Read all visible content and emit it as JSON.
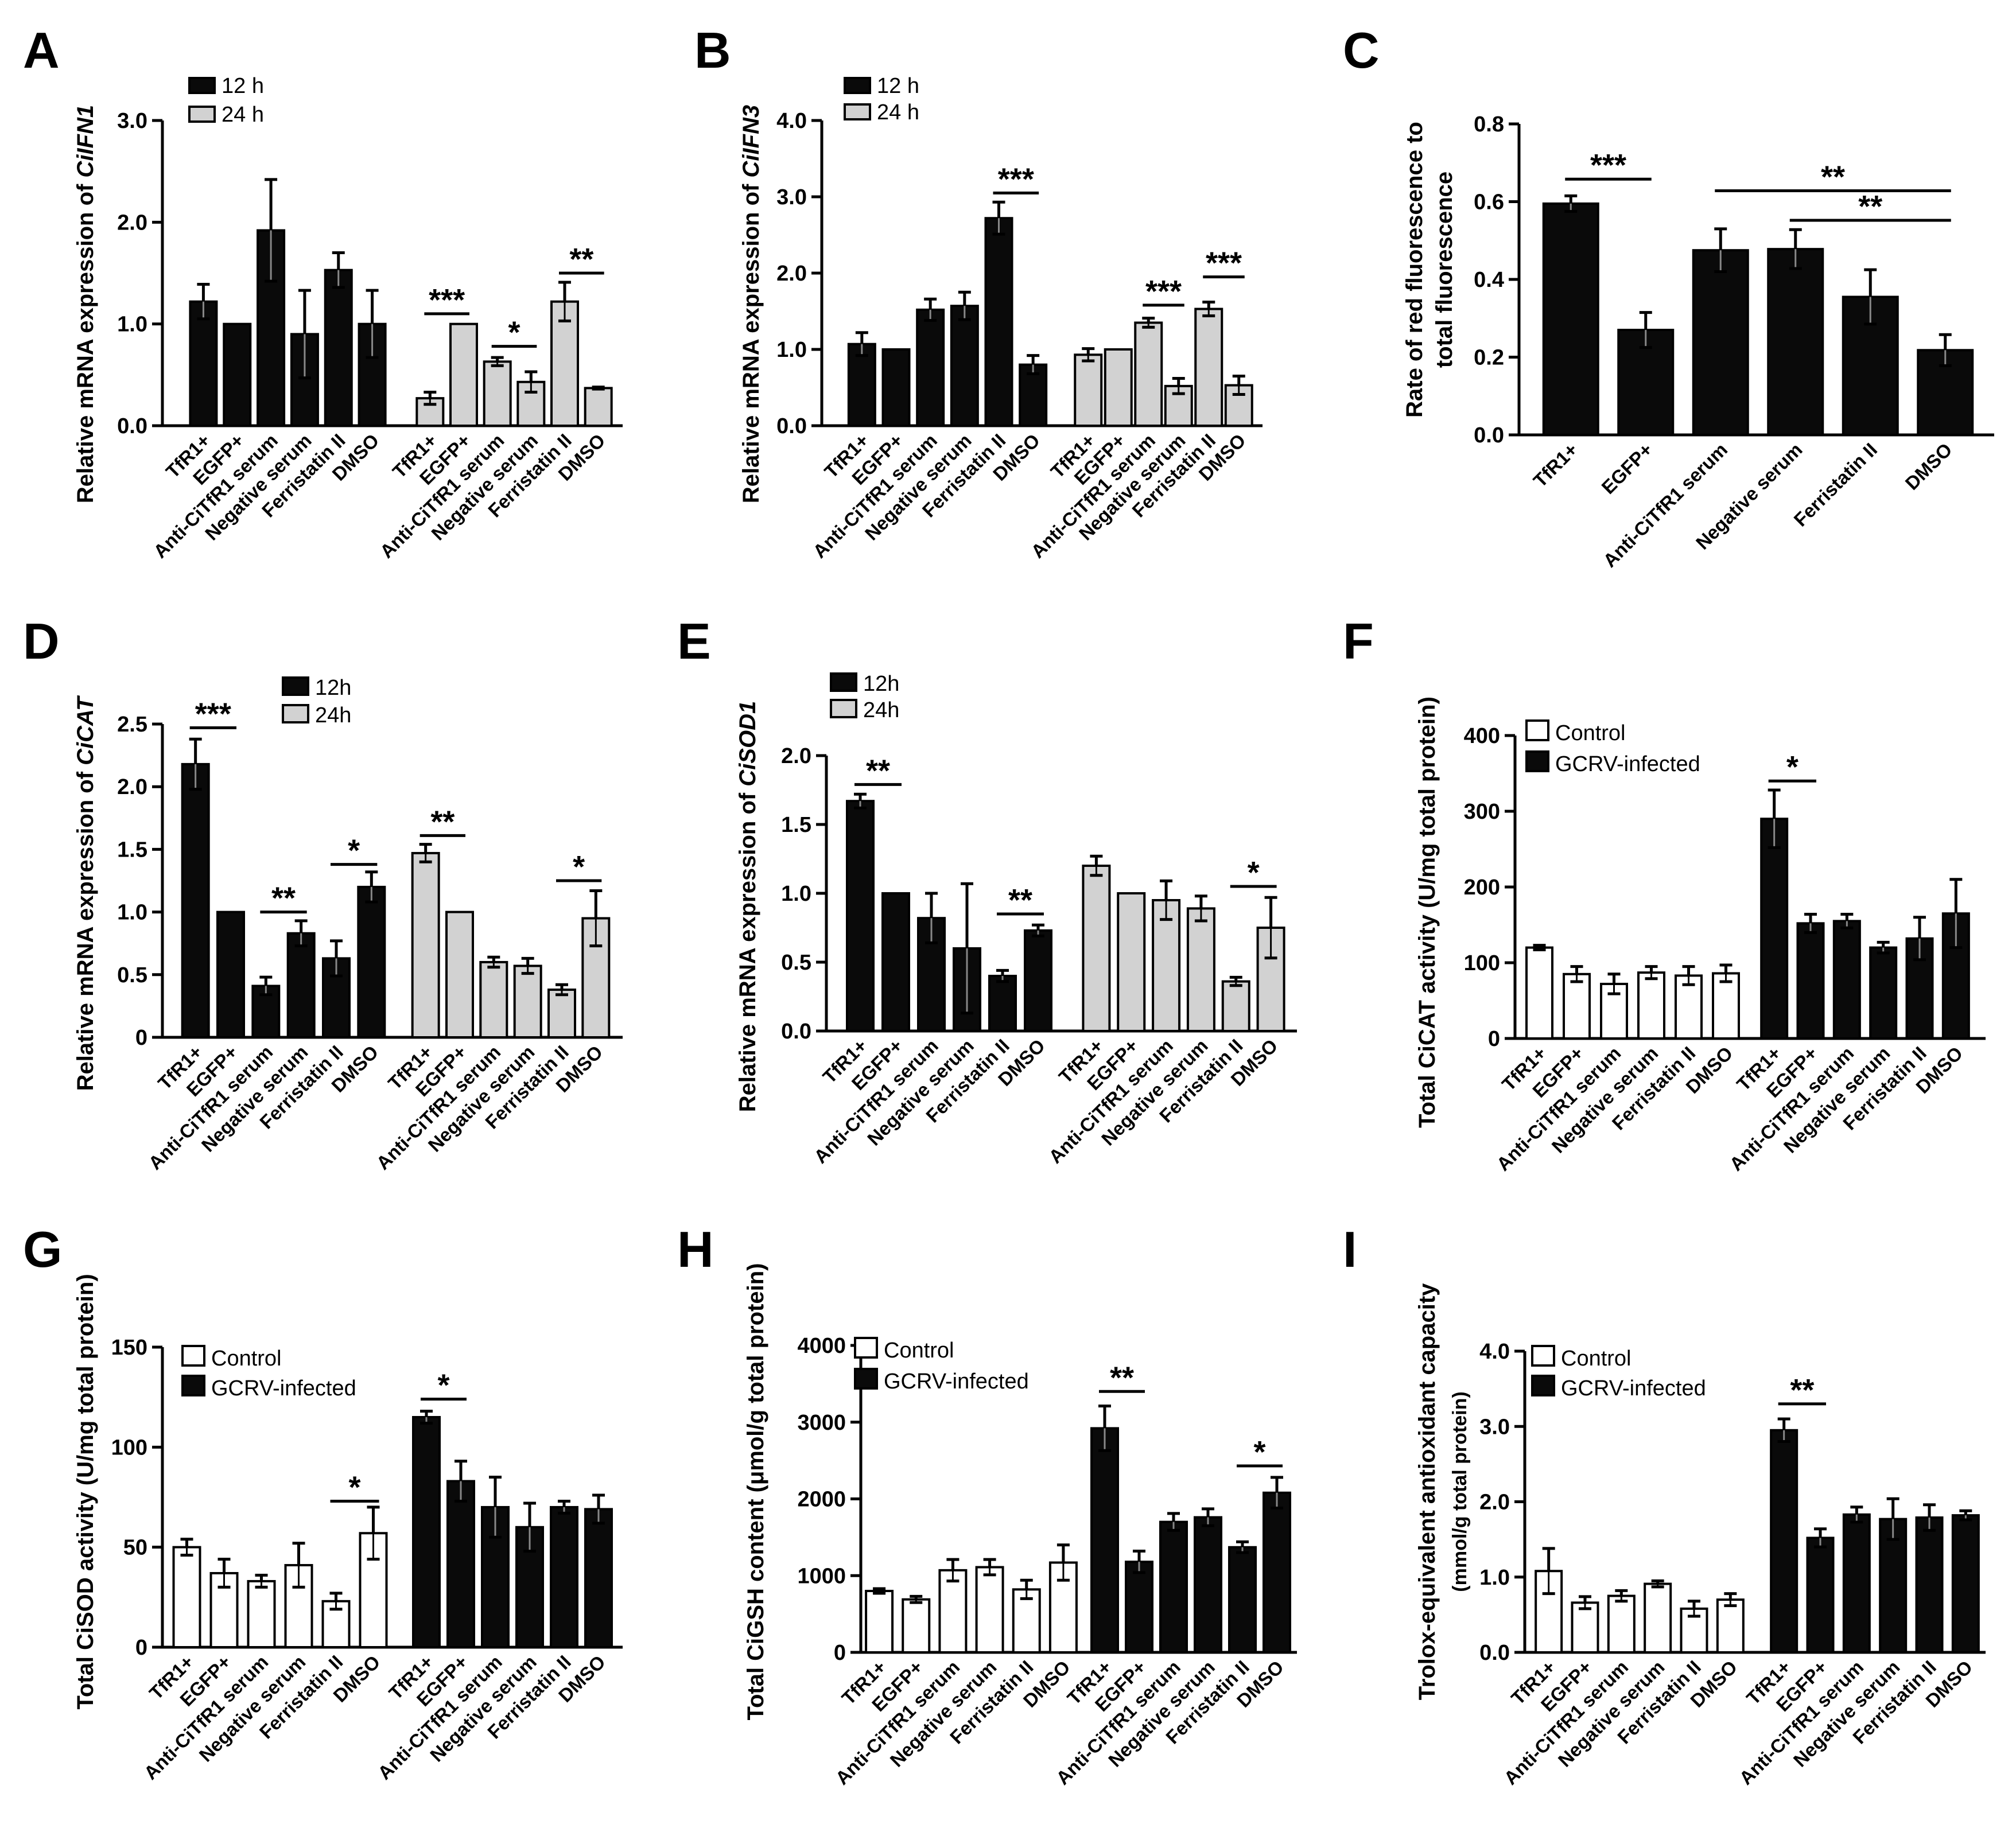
{
  "figure": {
    "colors": {
      "black": "#0a0a0a",
      "gray": "#d2d2d2",
      "white": "#ffffff"
    }
  },
  "chart_data": [
    {
      "panel": "A",
      "type": "bar",
      "ylabel_prefix": "Relative mRNA expression of ",
      "ylabel_gene": "CiIFN1",
      "ylim": [
        0,
        3
      ],
      "yticks": [
        "0.0",
        "1.0",
        "2.0",
        "3.0"
      ],
      "ytick_values": [
        0,
        1,
        2,
        3
      ],
      "legend": [
        "12 h",
        "24 h"
      ],
      "groups": [
        {
          "name": "12 h",
          "style": "black",
          "categories": [
            "TfR1+",
            "EGFP+",
            "Anti-CiTfR1 serum",
            "Negative serum",
            "Ferristatin II",
            "DMSO"
          ],
          "values": [
            1.22,
            1.0,
            1.92,
            0.9,
            1.53,
            1.0
          ],
          "errors": [
            0.17,
            0.0,
            0.5,
            0.43,
            0.17,
            0.33
          ]
        },
        {
          "name": "24 h",
          "style": "gray",
          "categories": [
            "TfR1+",
            "EGFP+",
            "Anti-CiTfR1 serum",
            "Negative serum",
            "Ferristatin II",
            "DMSO"
          ],
          "values": [
            0.27,
            1.0,
            0.63,
            0.43,
            1.22,
            0.37
          ],
          "errors": [
            0.06,
            0.0,
            0.04,
            0.1,
            0.19,
            0.01
          ]
        }
      ],
      "significance": [
        {
          "group": 1,
          "from": 0,
          "to": 1,
          "label": "***",
          "y": 1.1
        },
        {
          "group": 1,
          "from": 2,
          "to": 3,
          "label": "*",
          "y": 0.78
        },
        {
          "group": 1,
          "from": 4,
          "to": 5,
          "label": "**",
          "y": 1.5
        }
      ]
    },
    {
      "panel": "B",
      "type": "bar",
      "ylabel_prefix": "Relative mRNA expression of ",
      "ylabel_gene": "CiIFN3",
      "ylim": [
        0,
        4
      ],
      "yticks": [
        "0.0",
        "1.0",
        "2.0",
        "3.0",
        "4.0"
      ],
      "ytick_values": [
        0,
        1,
        2,
        3,
        4
      ],
      "legend": [
        "12  h",
        "24  h"
      ],
      "groups": [
        {
          "name": "12 h",
          "style": "black",
          "categories": [
            "TfR1+",
            "EGFP+",
            "Anti-CiTfR1 serum",
            "Negative serum",
            "Ferristatin II",
            "DMSO"
          ],
          "values": [
            1.07,
            1.0,
            1.52,
            1.57,
            2.72,
            0.8
          ],
          "errors": [
            0.15,
            0.0,
            0.14,
            0.18,
            0.21,
            0.12
          ]
        },
        {
          "name": "24 h",
          "style": "gray",
          "categories": [
            "TfR1+",
            "EGFP+",
            "Anti-CiTfR1 serum",
            "Negative serum",
            "Ferristatin II",
            "DMSO"
          ],
          "values": [
            0.93,
            1.0,
            1.35,
            0.52,
            1.53,
            0.53
          ],
          "errors": [
            0.08,
            0.0,
            0.06,
            0.1,
            0.09,
            0.12
          ]
        }
      ],
      "significance": [
        {
          "group": 0,
          "from": 4,
          "to": 5,
          "label": "***",
          "y": 3.05
        },
        {
          "group": 1,
          "from": 2,
          "to": 3,
          "label": "***",
          "y": 1.58
        },
        {
          "group": 1,
          "from": 4,
          "to": 5,
          "label": "***",
          "y": 1.95
        }
      ]
    },
    {
      "panel": "C",
      "type": "bar",
      "ylabel_lines": [
        "Rate of red fluorescence to",
        "total fluorescence"
      ],
      "ylim": [
        0,
        0.8
      ],
      "yticks": [
        "0.0",
        "0.2",
        "0.4",
        "0.6",
        "0.8"
      ],
      "ytick_values": [
        0,
        0.2,
        0.4,
        0.6,
        0.8
      ],
      "groups": [
        {
          "name": "all",
          "style": "black",
          "categories": [
            "TfR1+",
            "EGFP+",
            "Anti-CiTfR1 serum",
            "Negative serum",
            "Ferristatin II",
            "DMSO"
          ],
          "values": [
            0.595,
            0.27,
            0.475,
            0.478,
            0.355,
            0.218
          ],
          "errors": [
            0.02,
            0.045,
            0.055,
            0.05,
            0.07,
            0.04
          ]
        }
      ],
      "significance": [
        {
          "group": 0,
          "from": 0,
          "to": 1,
          "label": "***",
          "y": 0.658
        },
        {
          "group": 0,
          "from": 2,
          "to": 5,
          "label": "**",
          "y": 0.628
        },
        {
          "group": 0,
          "from": 3,
          "to": 5,
          "label": "**",
          "y": 0.552
        }
      ]
    },
    {
      "panel": "D",
      "type": "bar",
      "ylabel_prefix": "Relative mRNA expression of ",
      "ylabel_gene": "CiCAT",
      "ylim": [
        0,
        2.5
      ],
      "yticks": [
        "0",
        "0.5",
        "1.0",
        "1.5",
        "2.0",
        "2.5"
      ],
      "ytick_values": [
        0,
        0.5,
        1,
        1.5,
        2,
        2.5
      ],
      "legend": [
        "12h",
        "24h"
      ],
      "groups": [
        {
          "name": "12 h",
          "style": "black",
          "categories": [
            "TfR1+",
            "EGFP+",
            "Anti-CiTfR1 serum",
            "Negative serum",
            "Ferristatin II",
            "DMSO"
          ],
          "values": [
            2.18,
            1.0,
            0.41,
            0.83,
            0.63,
            1.2
          ],
          "errors": [
            0.2,
            0.0,
            0.07,
            0.1,
            0.14,
            0.12
          ]
        },
        {
          "name": "24 h",
          "style": "gray",
          "categories": [
            "TfR1+",
            "EGFP+",
            "Anti-CiTfR1 serum",
            "Negative serum",
            "Ferristatin II",
            "DMSO"
          ],
          "values": [
            1.47,
            1.0,
            0.6,
            0.57,
            0.38,
            0.95
          ],
          "errors": [
            0.07,
            0.0,
            0.04,
            0.06,
            0.04,
            0.22
          ]
        }
      ],
      "significance": [
        {
          "group": 0,
          "from": 0,
          "to": 1,
          "label": "***",
          "y": 2.47
        },
        {
          "group": 0,
          "from": 2,
          "to": 3,
          "label": "**",
          "y": 1.0
        },
        {
          "group": 0,
          "from": 4,
          "to": 5,
          "label": "*",
          "y": 1.38
        },
        {
          "group": 1,
          "from": 0,
          "to": 1,
          "label": "**",
          "y": 1.61
        },
        {
          "group": 1,
          "from": 4,
          "to": 5,
          "label": "*",
          "y": 1.25
        }
      ]
    },
    {
      "panel": "E",
      "type": "bar",
      "ylabel_prefix": "Relative mRNA expression of ",
      "ylabel_gene": "CiSOD1",
      "ylim": [
        0,
        2.0
      ],
      "yticks": [
        "0.0",
        "0.5",
        "1.0",
        "1.5",
        "2.0"
      ],
      "ytick_values": [
        0,
        0.5,
        1,
        1.5,
        2
      ],
      "legend": [
        "12h",
        "24h"
      ],
      "groups": [
        {
          "name": "12 h",
          "style": "black",
          "categories": [
            "TfR1+",
            "EGFP+",
            "Anti-CiTfR1 serum",
            "Negative serum",
            "Ferristatin II",
            "DMSO"
          ],
          "values": [
            1.67,
            1.0,
            0.82,
            0.6,
            0.4,
            0.73
          ],
          "errors": [
            0.05,
            0.0,
            0.18,
            0.47,
            0.04,
            0.04
          ]
        },
        {
          "name": "24 h",
          "style": "gray",
          "categories": [
            "TfR1+",
            "EGFP+",
            "Anti-CiTfR1 serum",
            "Negative serum",
            "Ferristatin II",
            "DMSO"
          ],
          "values": [
            1.2,
            1.0,
            0.95,
            0.89,
            0.36,
            0.75
          ],
          "errors": [
            0.07,
            0.0,
            0.14,
            0.09,
            0.03,
            0.22
          ]
        }
      ],
      "significance": [
        {
          "group": 0,
          "from": 0,
          "to": 1,
          "label": "**",
          "y": 1.79
        },
        {
          "group": 0,
          "from": 4,
          "to": 5,
          "label": "**",
          "y": 0.85
        },
        {
          "group": 1,
          "from": 4,
          "to": 5,
          "label": "*",
          "y": 1.05
        }
      ]
    },
    {
      "panel": "F",
      "type": "bar",
      "ylabel": "Total CiCAT activity (U/mg total protein)",
      "ylim": [
        0,
        400
      ],
      "yticks": [
        "0",
        "100",
        "200",
        "300",
        "400"
      ],
      "ytick_values": [
        0,
        100,
        200,
        300,
        400
      ],
      "legend": [
        "Control",
        "GCRV-infected"
      ],
      "groups": [
        {
          "name": "Control",
          "style": "white",
          "categories": [
            "TfR1+",
            "EGFP+",
            "Anti-CiTfR1 serum",
            "Negative serum",
            "Ferristatin II",
            "DMSO"
          ],
          "values": [
            120,
            85,
            72,
            87,
            83,
            86
          ],
          "errors": [
            3,
            10,
            13,
            8,
            12,
            11
          ]
        },
        {
          "name": "GCRV-infected",
          "style": "black",
          "categories": [
            "TfR1+",
            "EGFP+",
            "Anti-CiTfR1 serum",
            "Negative serum",
            "Ferristatin II",
            "DMSO"
          ],
          "values": [
            290,
            152,
            155,
            120,
            132,
            165
          ],
          "errors": [
            38,
            12,
            9,
            7,
            28,
            45
          ]
        }
      ],
      "significance": [
        {
          "group": 1,
          "from": 0,
          "to": 1,
          "label": "*",
          "y": 340
        }
      ]
    },
    {
      "panel": "G",
      "type": "bar",
      "ylabel": "Total CiSOD activity (U/mg total protein)",
      "ylim": [
        0,
        150
      ],
      "yticks": [
        "0",
        "50",
        "100",
        "150"
      ],
      "ytick_values": [
        0,
        50,
        100,
        150
      ],
      "legend": [
        "Control",
        "GCRV-infected"
      ],
      "groups": [
        {
          "name": "Control",
          "style": "white",
          "categories": [
            "TfR1+",
            "EGFP+",
            "Anti-CiTfR1 serum",
            "Negative serum",
            "Ferristatin II",
            "DMSO"
          ],
          "values": [
            50,
            37,
            33,
            41,
            23,
            57
          ],
          "errors": [
            4,
            7,
            3,
            11,
            4,
            13
          ]
        },
        {
          "name": "GCRV-infected",
          "style": "black",
          "categories": [
            "TfR1+",
            "EGFP+",
            "Anti-CiTfR1 serum",
            "Negative serum",
            "Ferristatin II",
            "DMSO"
          ],
          "values": [
            115,
            83,
            70,
            60,
            70,
            69
          ],
          "errors": [
            3,
            10,
            15,
            12,
            3,
            7
          ]
        }
      ],
      "significance": [
        {
          "group": 0,
          "from": 4,
          "to": 5,
          "label": "*",
          "y": 73
        },
        {
          "group": 1,
          "from": 0,
          "to": 1,
          "label": "*",
          "y": 124
        }
      ]
    },
    {
      "panel": "H",
      "type": "bar",
      "ylabel": "Total CiGSH content (μmol/g total protein)",
      "ylim": [
        0,
        4000
      ],
      "yticks": [
        "0",
        "1000",
        "2000",
        "3000",
        "4000"
      ],
      "ytick_values": [
        0,
        1000,
        2000,
        3000,
        4000
      ],
      "legend": [
        "Control",
        "GCRV-infected"
      ],
      "groups": [
        {
          "name": "Control",
          "style": "white",
          "categories": [
            "TfR1+",
            "EGFP+",
            "Anti-CiTfR1 serum",
            "Negative serum",
            "Ferristatin II",
            "DMSO"
          ],
          "values": [
            800,
            690,
            1070,
            1110,
            820,
            1170
          ],
          "errors": [
            30,
            40,
            140,
            100,
            120,
            230
          ]
        },
        {
          "name": "GCRV-infected",
          "style": "black",
          "categories": [
            "TfR1+",
            "EGFP+",
            "Anti-CiTfR1 serum",
            "Negative serum",
            "Ferristatin II",
            "DMSO"
          ],
          "values": [
            2920,
            1180,
            1700,
            1760,
            1370,
            2080
          ],
          "errors": [
            290,
            140,
            110,
            110,
            70,
            200
          ]
        }
      ],
      "significance": [
        {
          "group": 1,
          "from": 0,
          "to": 1,
          "label": "**",
          "y": 3400
        },
        {
          "group": 1,
          "from": 4,
          "to": 5,
          "label": "*",
          "y": 2430
        }
      ]
    },
    {
      "panel": "I",
      "type": "bar",
      "ylabel": "Trolox-equivalent antioxidant capacity",
      "ylabel_sub": "(mmol/g total protein)",
      "ylim": [
        0,
        4.0
      ],
      "yticks": [
        "0.0",
        "1.0",
        "2.0",
        "3.0",
        "4.0"
      ],
      "ytick_values": [
        0,
        1,
        2,
        3,
        4
      ],
      "legend": [
        "Control",
        "GCRV-infected"
      ],
      "groups": [
        {
          "name": "Control",
          "style": "white",
          "categories": [
            "TfR1+",
            "EGFP+",
            "Anti-CiTfR1 serum",
            "Negative serum",
            "Ferristatin II",
            "DMSO"
          ],
          "values": [
            1.08,
            0.66,
            0.75,
            0.91,
            0.58,
            0.7
          ],
          "errors": [
            0.3,
            0.08,
            0.07,
            0.04,
            0.1,
            0.08
          ]
        },
        {
          "name": "GCRV-infected",
          "style": "black",
          "categories": [
            "TfR1+",
            "EGFP+",
            "Anti-CiTfR1 serum",
            "Negative serum",
            "Ferristatin II",
            "DMSO"
          ],
          "values": [
            2.95,
            1.52,
            1.83,
            1.77,
            1.79,
            1.82
          ],
          "errors": [
            0.15,
            0.12,
            0.1,
            0.27,
            0.17,
            0.06
          ]
        }
      ],
      "significance": [
        {
          "group": 1,
          "from": 0,
          "to": 1,
          "label": "**",
          "y": 3.3
        }
      ]
    }
  ]
}
